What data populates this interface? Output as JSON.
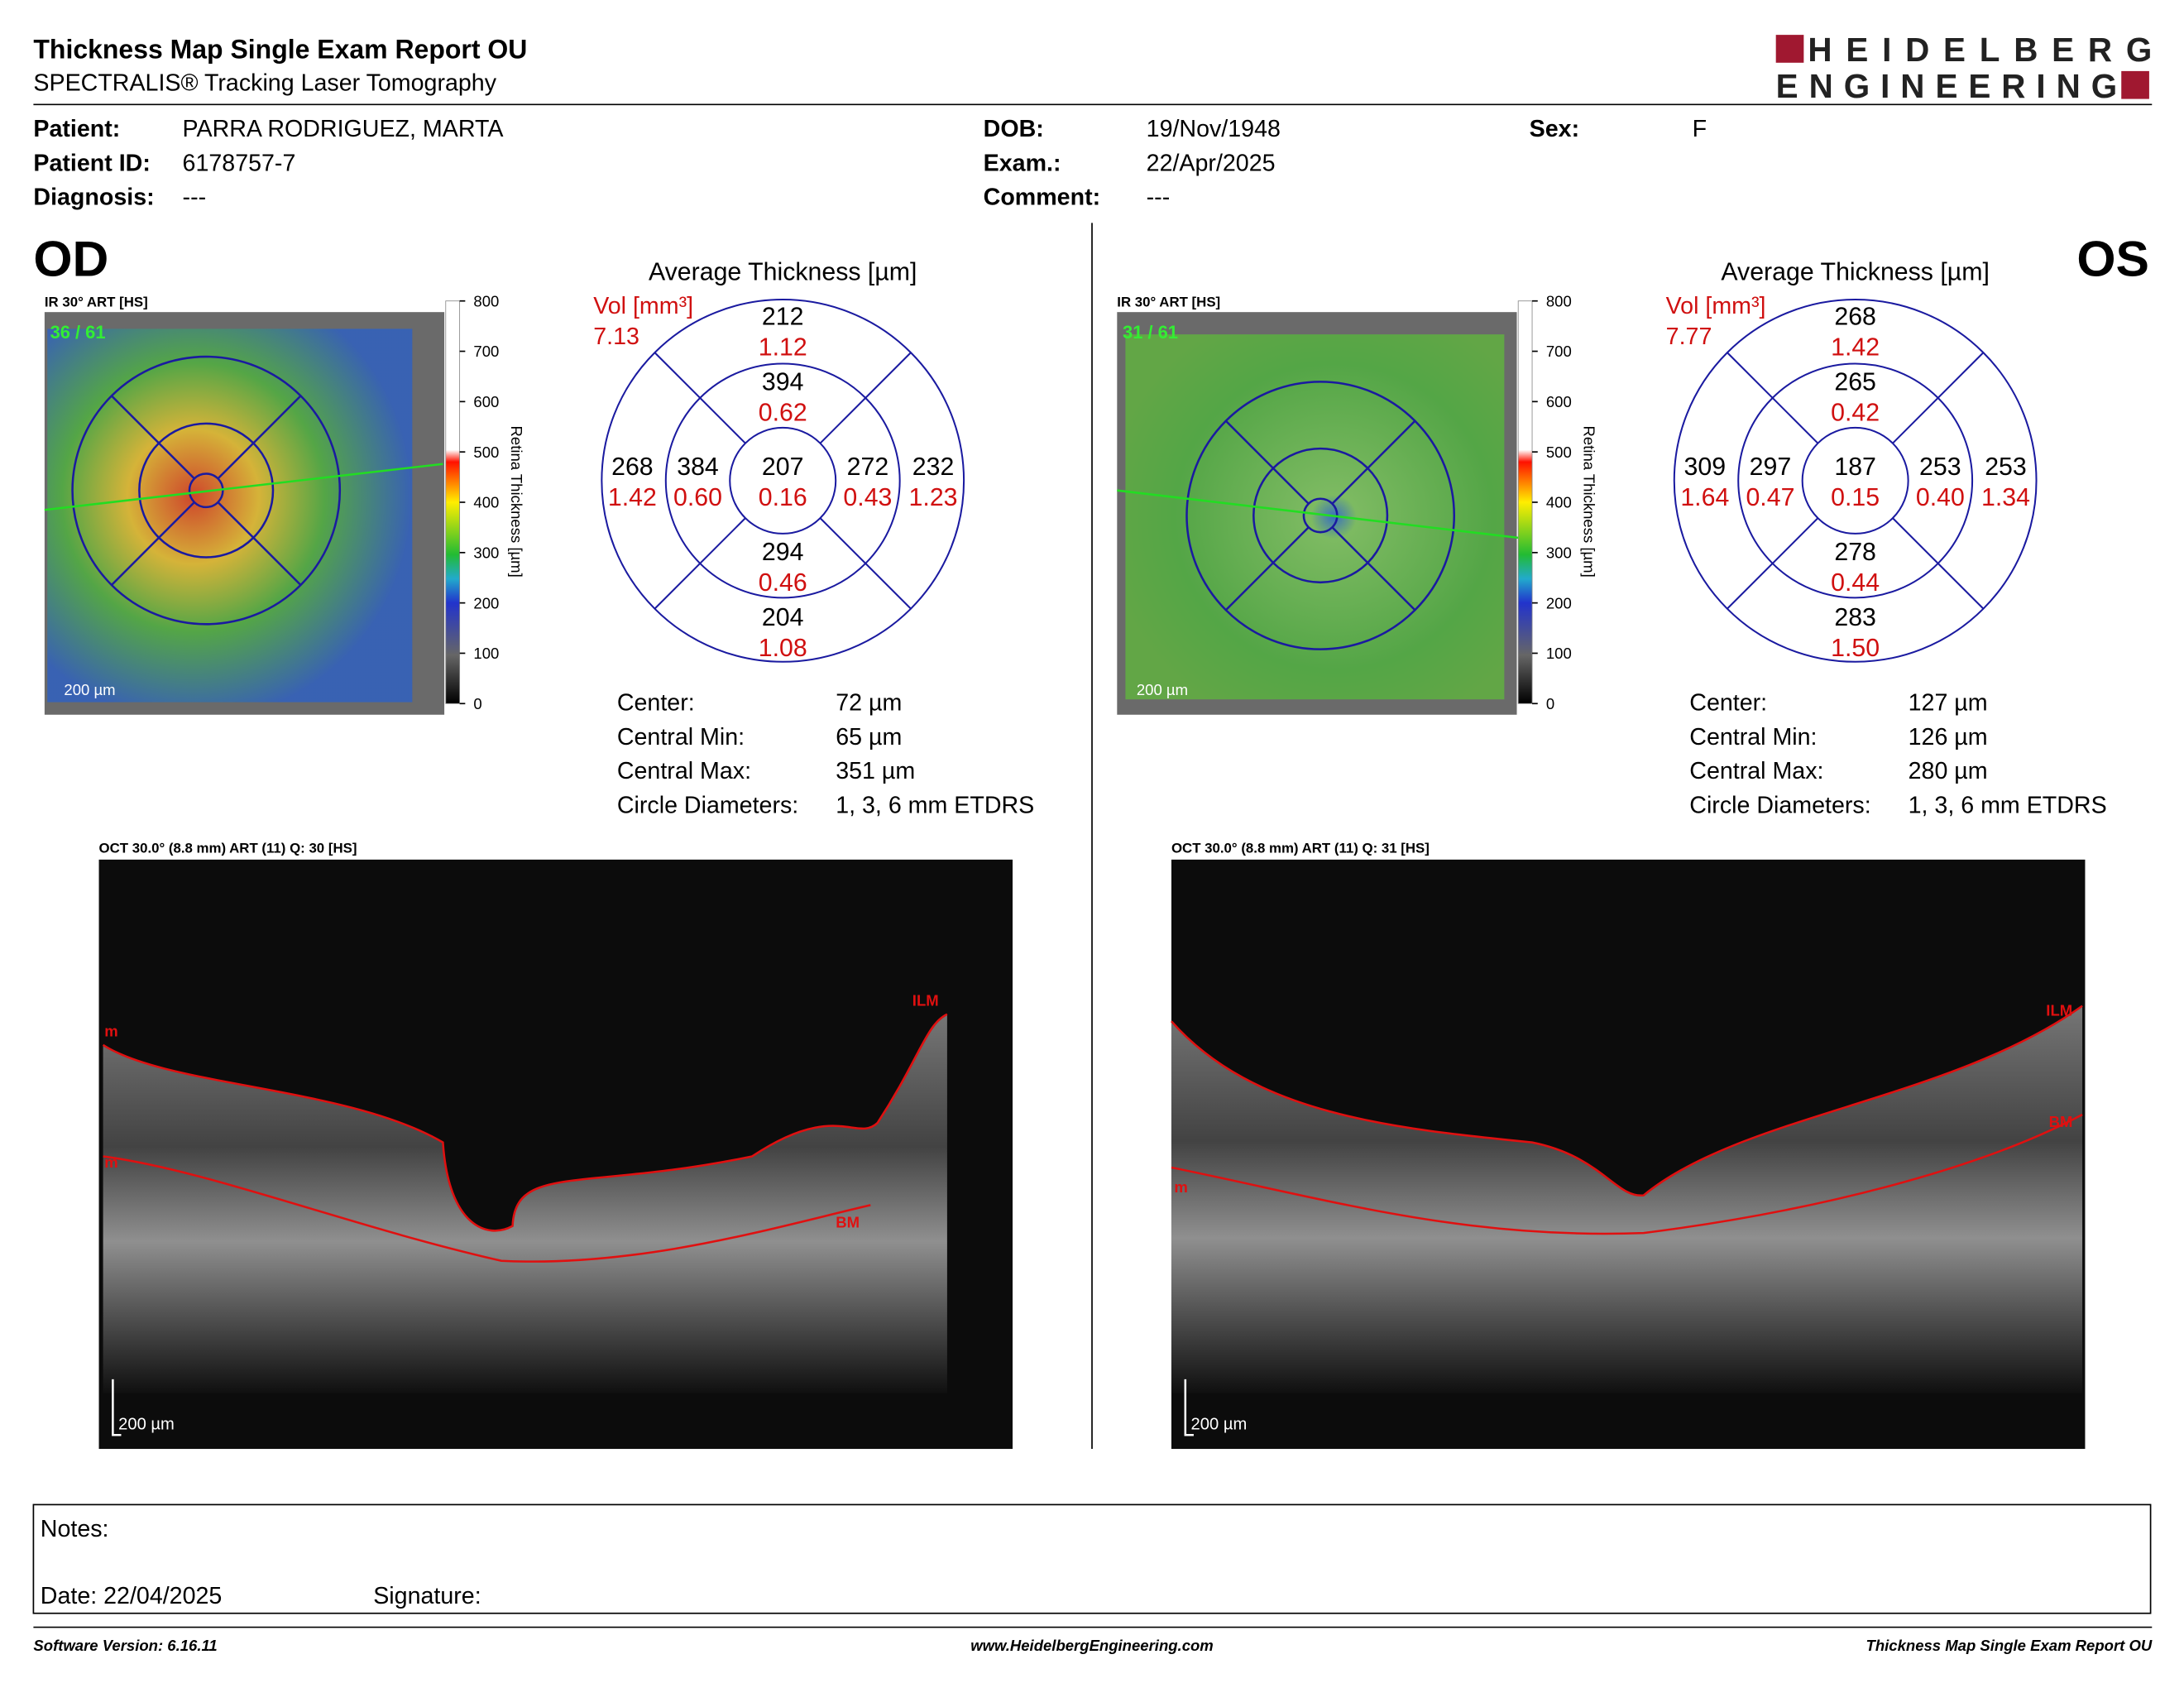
{
  "header": {
    "title": "Thickness Map Single Exam Report OU",
    "subtitle": "SPECTRALIS® Tracking Laser Tomography",
    "logo": [
      "HEIDELBERG",
      "ENGINEERING"
    ]
  },
  "patient": {
    "columns": [
      [
        {
          "label": "Patient:",
          "value": "PARRA RODRIGUEZ, MARTA"
        },
        {
          "label": "Patient ID:",
          "value": "6178757-7"
        },
        {
          "label": "Diagnosis:",
          "value": "---"
        }
      ],
      [
        {
          "label": "DOB:",
          "value": "19/Nov/1948"
        },
        {
          "label": "Exam.:",
          "value": "22/Apr/2025"
        },
        {
          "label": "Comment:",
          "value": "---"
        }
      ],
      [
        {
          "label": "Sex:",
          "value": "F"
        }
      ]
    ]
  },
  "eyes": [
    {
      "eye": "OD",
      "ir_label": "IR 30° ART [HS]",
      "frames": "36 / 61",
      "scale_bar": "200 µm",
      "colorbar_ticks": [
        800,
        700,
        600,
        500,
        400,
        300,
        200,
        100,
        0
      ],
      "colorbar_label": "Retina Thickness [µm]",
      "grid_title": "Average Thickness [µm]",
      "vol_label": "Vol [mm³]",
      "vol_total": "7.13",
      "sectors": [
        {
          "thickness": "212",
          "volume": "1.12"
        },
        {
          "thickness": "394",
          "volume": "0.62"
        },
        {
          "thickness": "268",
          "volume": "1.42"
        },
        {
          "thickness": "384",
          "volume": "0.60"
        },
        {
          "thickness": "207",
          "volume": "0.16"
        },
        {
          "thickness": "272",
          "volume": "0.43"
        },
        {
          "thickness": "232",
          "volume": "1.23"
        },
        {
          "thickness": "294",
          "volume": "0.46"
        },
        {
          "thickness": "204",
          "volume": "1.08"
        }
      ],
      "stats": [
        {
          "label": "Center:",
          "value": "72 µm"
        },
        {
          "label": "Central Min:",
          "value": "65 µm"
        },
        {
          "label": "Central Max:",
          "value": "351 µm"
        },
        {
          "label": "Circle Diameters:",
          "value": "1, 3, 6 mm ETDRS"
        }
      ],
      "oct_label": "OCT 30.0° (8.8 mm) ART (11) Q: 30 [HS]",
      "oct_scale": "200 µm",
      "layer_labels": [
        "m",
        "ILM",
        "m",
        "BM"
      ]
    },
    {
      "eye": "OS",
      "ir_label": "IR 30° ART [HS]",
      "frames": "31 / 61",
      "scale_bar": "200 µm",
      "colorbar_ticks": [
        800,
        700,
        600,
        500,
        400,
        300,
        200,
        100,
        0
      ],
      "colorbar_label": "Retina Thickness [µm]",
      "grid_title": "Average Thickness [µm]",
      "vol_label": "Vol [mm³]",
      "vol_total": "7.77",
      "sectors": [
        {
          "thickness": "268",
          "volume": "1.42"
        },
        {
          "thickness": "265",
          "volume": "0.42"
        },
        {
          "thickness": "309",
          "volume": "1.64"
        },
        {
          "thickness": "297",
          "volume": "0.47"
        },
        {
          "thickness": "187",
          "volume": "0.15"
        },
        {
          "thickness": "253",
          "volume": "0.40"
        },
        {
          "thickness": "253",
          "volume": "1.34"
        },
        {
          "thickness": "278",
          "volume": "0.44"
        },
        {
          "thickness": "283",
          "volume": "1.50"
        }
      ],
      "stats": [
        {
          "label": "Center:",
          "value": "127 µm"
        },
        {
          "label": "Central Min:",
          "value": "126 µm"
        },
        {
          "label": "Central Max:",
          "value": "280 µm"
        },
        {
          "label": "Circle Diameters:",
          "value": "1, 3, 6 mm ETDRS"
        }
      ],
      "oct_label": "OCT 30.0° (8.8 mm) ART (11) Q: 31 [HS]",
      "oct_scale": "200 µm",
      "layer_labels": [
        "ILM",
        "BM",
        "m"
      ]
    }
  ],
  "notes": {
    "label": "Notes:",
    "date": "Date: 22/04/2025",
    "signature": "Signature:"
  },
  "footer": {
    "left": "Software Version: 6.16.11",
    "center": "www.HeidelbergEngineering.com",
    "right": "Thickness Map Single Exam Report OU"
  }
}
